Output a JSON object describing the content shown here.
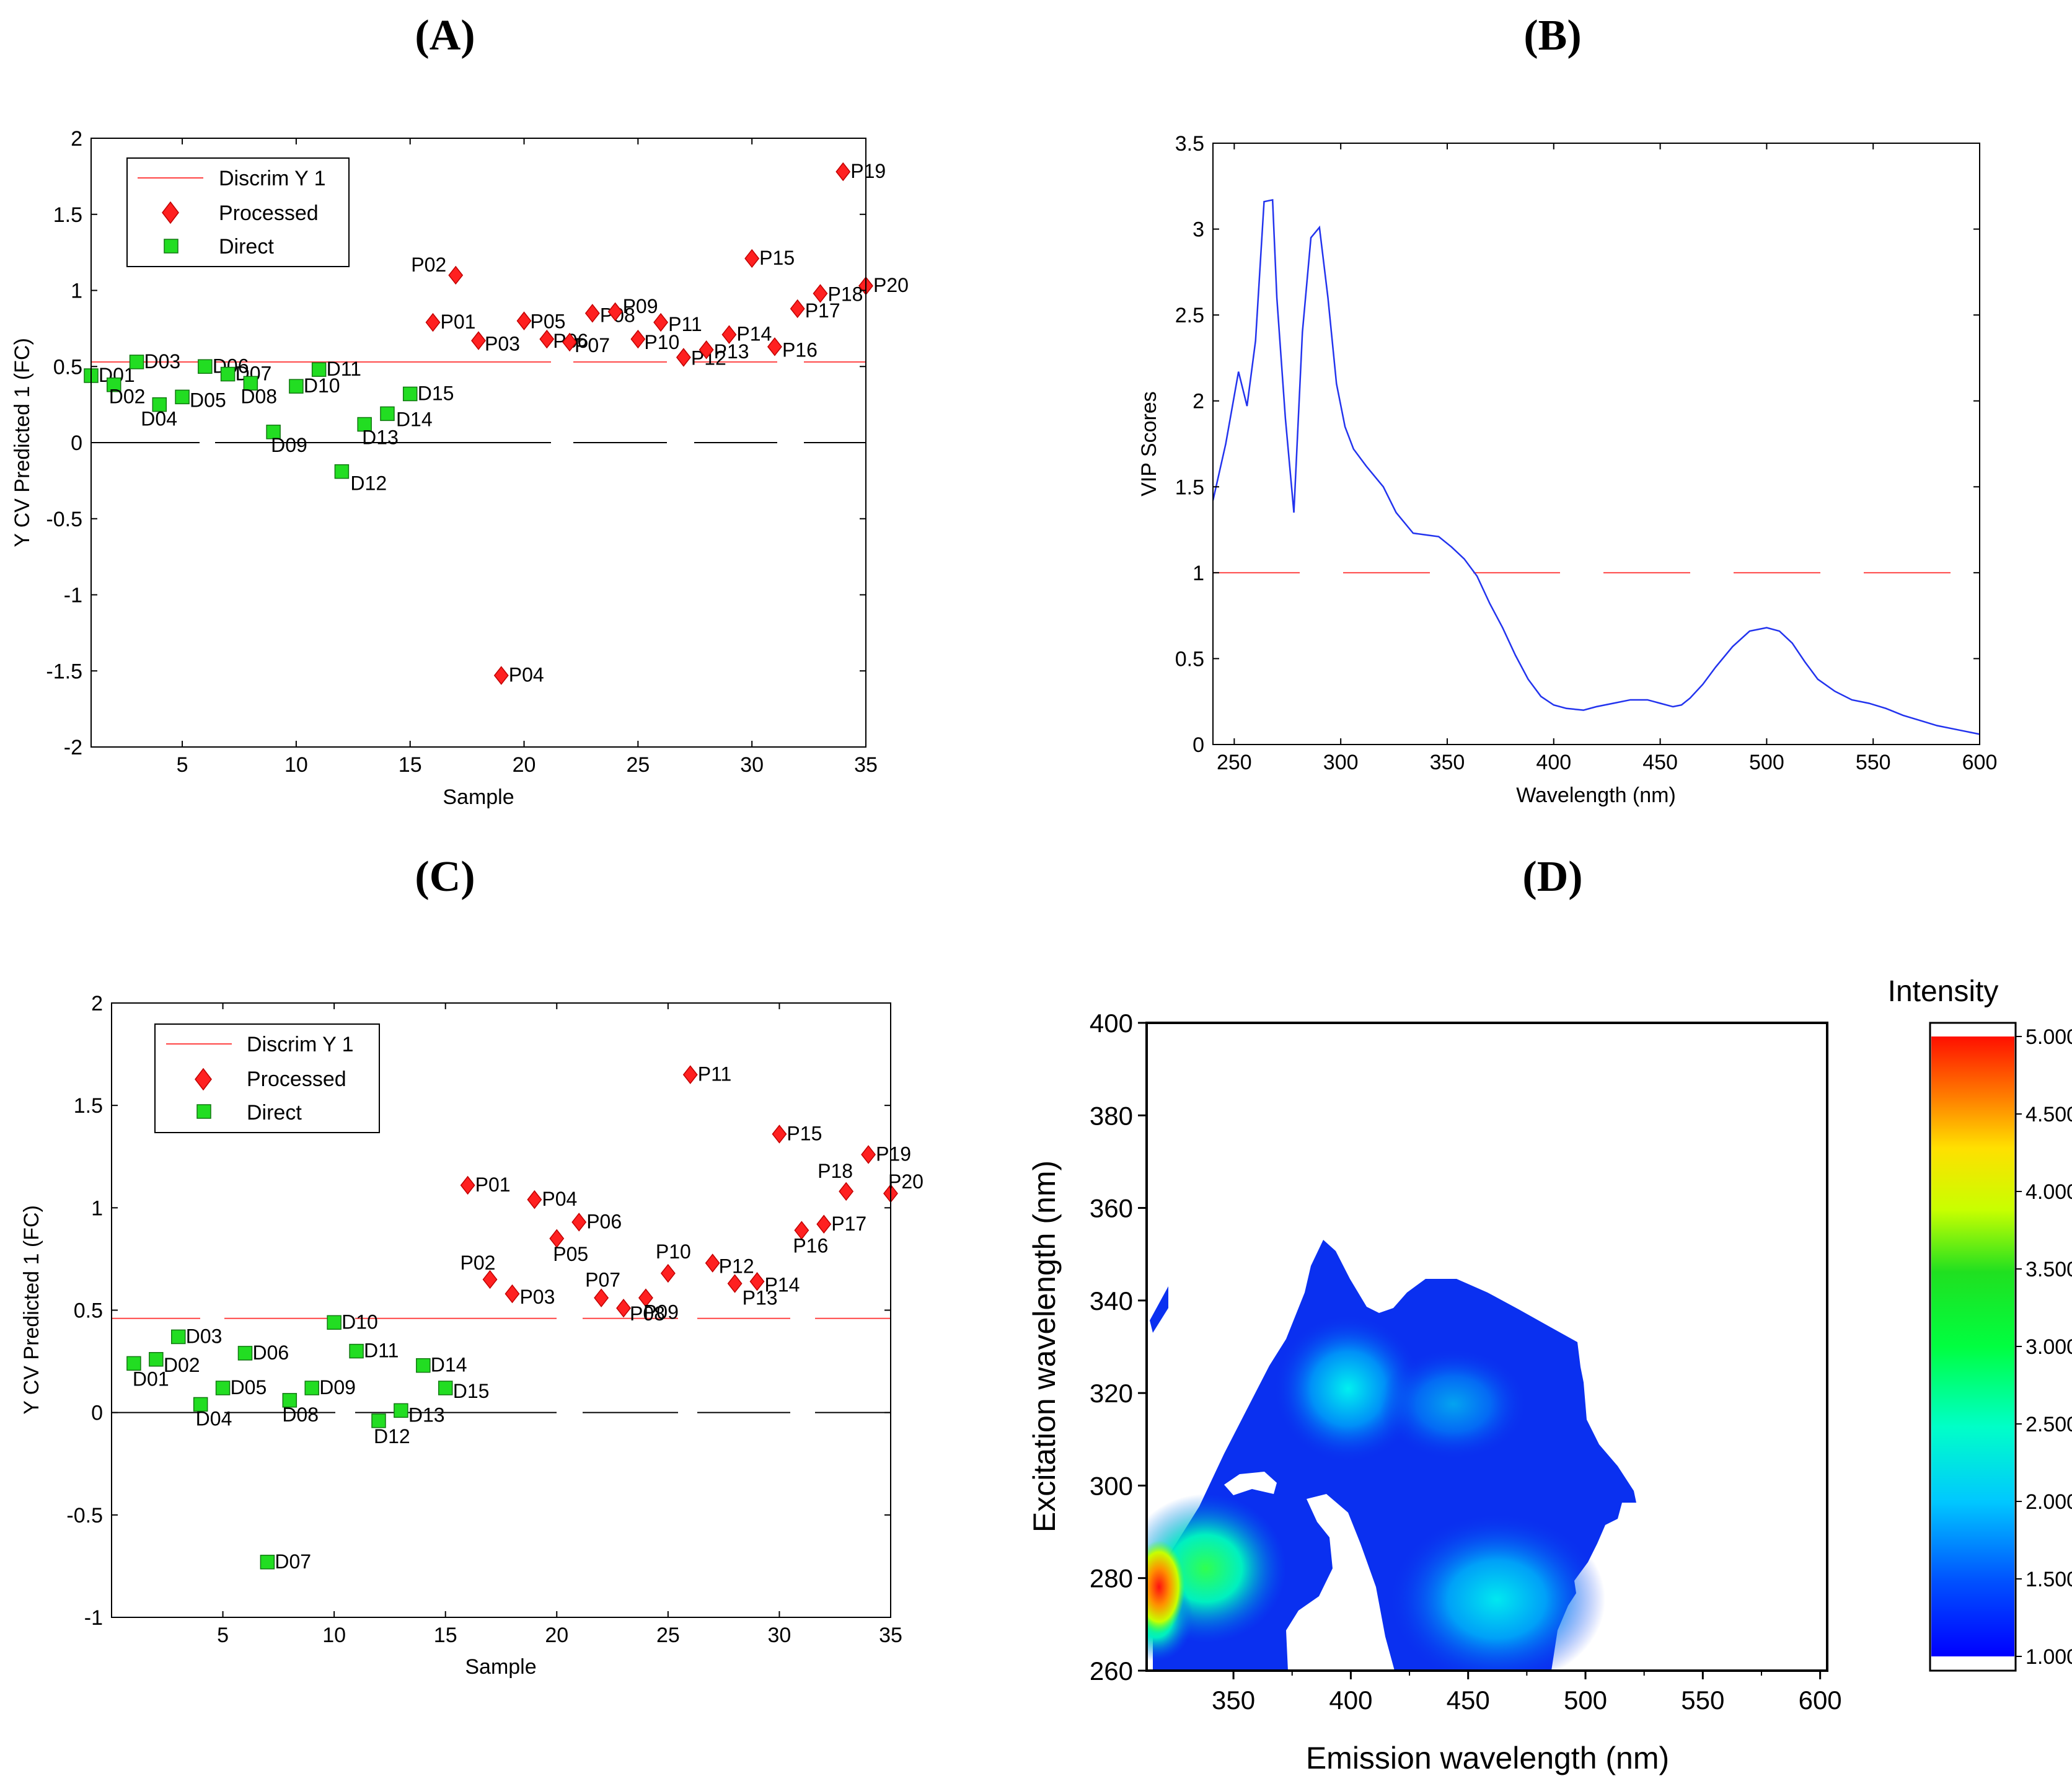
{
  "panels": {
    "A": {
      "letter": "(A)"
    },
    "B": {
      "letter": "(B)"
    },
    "C": {
      "letter": "(C)"
    },
    "D": {
      "letter": "(D)"
    }
  },
  "chart_data": [
    {
      "id": "A",
      "type": "scatter",
      "xlabel": "Sample",
      "ylabel": "Y CV Predicted 1 (FC)",
      "xlim": [
        1,
        35
      ],
      "ylim": [
        -2,
        2
      ],
      "xticks": [
        5,
        10,
        15,
        20,
        25,
        30,
        35
      ],
      "yticks": [
        -2,
        -1.5,
        -1,
        -0.5,
        0,
        0.5,
        1,
        1.5,
        2
      ],
      "threshold": 0.53,
      "grid": false,
      "legend": {
        "position": "top-left",
        "entries": [
          "Discrim Y 1",
          "Processed",
          "Direct"
        ]
      },
      "colors": {
        "processed": "#ff2020",
        "direct": "#22dd22",
        "threshold": "#ff4444",
        "zero": "#000000"
      },
      "series": [
        {
          "name": "Direct",
          "marker": "square",
          "points": [
            {
              "label": "D01",
              "x": 1,
              "y": 0.44
            },
            {
              "label": "D02",
              "x": 2,
              "y": 0.38
            },
            {
              "label": "D03",
              "x": 3,
              "y": 0.53
            },
            {
              "label": "D04",
              "x": 4,
              "y": 0.25
            },
            {
              "label": "D05",
              "x": 5,
              "y": 0.3
            },
            {
              "label": "D06",
              "x": 6,
              "y": 0.5
            },
            {
              "label": "D07",
              "x": 7,
              "y": 0.45
            },
            {
              "label": "D08",
              "x": 8,
              "y": 0.39
            },
            {
              "label": "D09",
              "x": 9,
              "y": 0.07
            },
            {
              "label": "D10",
              "x": 10,
              "y": 0.37
            },
            {
              "label": "D11",
              "x": 11,
              "y": 0.48
            },
            {
              "label": "D12",
              "x": 12,
              "y": -0.19
            },
            {
              "label": "D13",
              "x": 13,
              "y": 0.12
            },
            {
              "label": "D14",
              "x": 14,
              "y": 0.19
            },
            {
              "label": "D15",
              "x": 15,
              "y": 0.32
            }
          ]
        },
        {
          "name": "Processed",
          "marker": "diamond",
          "points": [
            {
              "label": "P01",
              "x": 16,
              "y": 0.79
            },
            {
              "label": "P02",
              "x": 17,
              "y": 1.1
            },
            {
              "label": "P03",
              "x": 18,
              "y": 0.67
            },
            {
              "label": "P04",
              "x": 19,
              "y": -1.53
            },
            {
              "label": "P05",
              "x": 20,
              "y": 0.8
            },
            {
              "label": "P06",
              "x": 21,
              "y": 0.68
            },
            {
              "label": "P07",
              "x": 22,
              "y": 0.66
            },
            {
              "label": "P08",
              "x": 23,
              "y": 0.85
            },
            {
              "label": "P09",
              "x": 24,
              "y": 0.86
            },
            {
              "label": "P10",
              "x": 25,
              "y": 0.68
            },
            {
              "label": "P11",
              "x": 26,
              "y": 0.79
            },
            {
              "label": "P12",
              "x": 27,
              "y": 0.56
            },
            {
              "label": "P13",
              "x": 28,
              "y": 0.61
            },
            {
              "label": "P14",
              "x": 29,
              "y": 0.71
            },
            {
              "label": "P15",
              "x": 30,
              "y": 1.21
            },
            {
              "label": "P16",
              "x": 31,
              "y": 0.63
            },
            {
              "label": "P17",
              "x": 32,
              "y": 0.88
            },
            {
              "label": "P18",
              "x": 33,
              "y": 0.98
            },
            {
              "label": "P19",
              "x": 34,
              "y": 1.78
            },
            {
              "label": "P20",
              "x": 35,
              "y": 1.03
            }
          ]
        }
      ]
    },
    {
      "id": "B",
      "type": "line",
      "xlabel": "Wavelength (nm)",
      "ylabel": "VIP Scores",
      "xlim": [
        240,
        600
      ],
      "ylim": [
        0,
        3.5
      ],
      "xticks": [
        250,
        300,
        350,
        400,
        450,
        500,
        550,
        600
      ],
      "yticks": [
        0,
        0.5,
        1,
        1.5,
        2,
        2.5,
        3,
        3.5
      ],
      "threshold": 1,
      "grid": false,
      "colors": {
        "line": "#2233ee",
        "threshold": "#ff4444"
      },
      "x": [
        240,
        246,
        252,
        256,
        260,
        264,
        268,
        270,
        274,
        278,
        282,
        286,
        290,
        294,
        298,
        302,
        306,
        312,
        320,
        326,
        334,
        340,
        346,
        352,
        358,
        364,
        370,
        376,
        382,
        388,
        394,
        400,
        406,
        414,
        420,
        428,
        436,
        444,
        450,
        456,
        460,
        464,
        470,
        476,
        484,
        492,
        500,
        506,
        512,
        518,
        524,
        532,
        540,
        548,
        556,
        564,
        572,
        580,
        588,
        596,
        600
      ],
      "y": [
        1.42,
        1.75,
        2.17,
        1.97,
        2.35,
        3.16,
        3.17,
        2.6,
        1.9,
        1.35,
        2.4,
        2.95,
        3.01,
        2.6,
        2.1,
        1.85,
        1.72,
        1.62,
        1.5,
        1.35,
        1.23,
        1.22,
        1.21,
        1.15,
        1.08,
        0.98,
        0.82,
        0.68,
        0.52,
        0.38,
        0.28,
        0.23,
        0.21,
        0.2,
        0.22,
        0.24,
        0.26,
        0.26,
        0.24,
        0.22,
        0.23,
        0.27,
        0.35,
        0.45,
        0.57,
        0.66,
        0.68,
        0.66,
        0.59,
        0.48,
        0.38,
        0.31,
        0.26,
        0.24,
        0.21,
        0.17,
        0.14,
        0.11,
        0.09,
        0.07,
        0.06
      ]
    },
    {
      "id": "C",
      "type": "scatter",
      "xlabel": "Sample",
      "ylabel": "Y CV Predicted 1 (FC)",
      "xlim": [
        0,
        35
      ],
      "ylim": [
        -1,
        2
      ],
      "xticks": [
        5,
        10,
        15,
        20,
        25,
        30,
        35
      ],
      "yticks": [
        -1,
        -0.5,
        0,
        0.5,
        1,
        1.5,
        2
      ],
      "threshold": 0.46,
      "grid": false,
      "legend": {
        "position": "top-left",
        "entries": [
          "Discrim Y 1",
          "Processed",
          "Direct"
        ]
      },
      "colors": {
        "processed": "#ff2020",
        "direct": "#22dd22",
        "threshold": "#ff4444",
        "zero": "#000000"
      },
      "series": [
        {
          "name": "Direct",
          "marker": "square",
          "points": [
            {
              "label": "D01",
              "x": 1,
              "y": 0.24
            },
            {
              "label": "D02",
              "x": 2,
              "y": 0.26
            },
            {
              "label": "D03",
              "x": 3,
              "y": 0.37
            },
            {
              "label": "D04",
              "x": 4,
              "y": 0.04
            },
            {
              "label": "D05",
              "x": 5,
              "y": 0.12
            },
            {
              "label": "D06",
              "x": 6,
              "y": 0.29
            },
            {
              "label": "D07",
              "x": 7,
              "y": -0.73
            },
            {
              "label": "D08",
              "x": 8,
              "y": 0.06
            },
            {
              "label": "D09",
              "x": 9,
              "y": 0.12
            },
            {
              "label": "D10",
              "x": 10,
              "y": 0.44
            },
            {
              "label": "D11",
              "x": 11,
              "y": 0.3
            },
            {
              "label": "D12",
              "x": 12,
              "y": -0.04
            },
            {
              "label": "D13",
              "x": 13,
              "y": 0.01
            },
            {
              "label": "D14",
              "x": 14,
              "y": 0.23
            },
            {
              "label": "D15",
              "x": 15,
              "y": 0.12
            }
          ]
        },
        {
          "name": "Processed",
          "marker": "diamond",
          "points": [
            {
              "label": "P01",
              "x": 16,
              "y": 1.11
            },
            {
              "label": "P02",
              "x": 17,
              "y": 0.65
            },
            {
              "label": "P03",
              "x": 18,
              "y": 0.58
            },
            {
              "label": "P04",
              "x": 19,
              "y": 1.04
            },
            {
              "label": "P05",
              "x": 20,
              "y": 0.85
            },
            {
              "label": "P06",
              "x": 21,
              "y": 0.93
            },
            {
              "label": "P07",
              "x": 22,
              "y": 0.56
            },
            {
              "label": "P08",
              "x": 23,
              "y": 0.51
            },
            {
              "label": "P09",
              "x": 24,
              "y": 0.56
            },
            {
              "label": "P10",
              "x": 25,
              "y": 0.68
            },
            {
              "label": "P11",
              "x": 26,
              "y": 1.65
            },
            {
              "label": "P12",
              "x": 27,
              "y": 0.73
            },
            {
              "label": "P13",
              "x": 28,
              "y": 0.63
            },
            {
              "label": "P14",
              "x": 29,
              "y": 0.64
            },
            {
              "label": "P15",
              "x": 30,
              "y": 1.36
            },
            {
              "label": "P16",
              "x": 31,
              "y": 0.89
            },
            {
              "label": "P17",
              "x": 32,
              "y": 0.92
            },
            {
              "label": "P18",
              "x": 33,
              "y": 1.08
            },
            {
              "label": "P19",
              "x": 34,
              "y": 1.26
            },
            {
              "label": "P20",
              "x": 35,
              "y": 1.07
            }
          ]
        }
      ]
    },
    {
      "id": "D",
      "type": "heatmap",
      "xlabel": "Emission wavelength (nm)",
      "ylabel": "Excitation wavelength (nm)",
      "xlim": [
        313,
        603
      ],
      "ylim": [
        260,
        400
      ],
      "xticks": [
        350,
        400,
        450,
        500,
        550,
        600
      ],
      "yticks": [
        260,
        280,
        300,
        320,
        340,
        360,
        380,
        400
      ],
      "colorbar": {
        "title": "Intensity",
        "min": 1.0,
        "max": 5.0,
        "ticks": [
          "1.000",
          "1.500",
          "2.000",
          "2.500",
          "3.000",
          "3.500",
          "4.000",
          "4.500",
          "5.000"
        ]
      },
      "colors": {
        "low": "#0a18f0",
        "mid": "#00e8e0",
        "high": "#ff1010"
      },
      "contour_hotspots": [
        {
          "x": 460,
          "y": 272,
          "value": 2.0
        },
        {
          "x": 387,
          "y": 304,
          "value": 2.0
        },
        {
          "x": 440,
          "y": 302,
          "value": 1.7
        },
        {
          "x": 340,
          "y": 278,
          "value": 3.0
        },
        {
          "x": 318,
          "y": 276,
          "value": 4.8
        }
      ]
    }
  ]
}
